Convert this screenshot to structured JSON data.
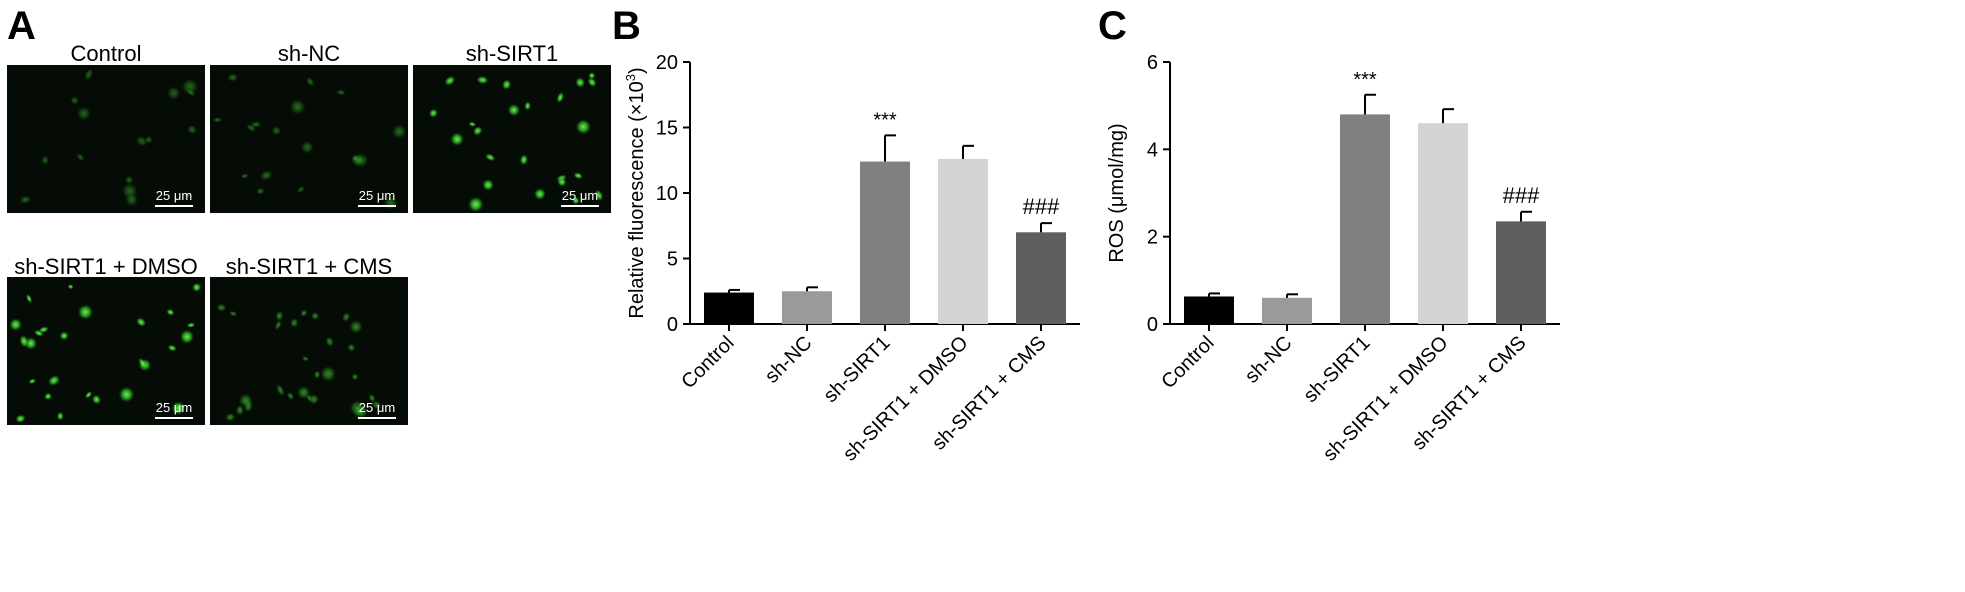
{
  "panels": {
    "a": "A",
    "b": "B",
    "c": "C"
  },
  "micrographs": [
    {
      "title": "Control",
      "scale": "25 μm"
    },
    {
      "title": "sh-NC",
      "scale": "25 μm"
    },
    {
      "title": "sh-SIRT1",
      "scale": "25 μm"
    },
    {
      "title": "sh-SIRT1 + DMSO",
      "scale": "25 μm"
    },
    {
      "title": "sh-SIRT1 + CMS",
      "scale": "25 μm"
    }
  ],
  "chart_data": [
    {
      "type": "bar",
      "title": "",
      "categories": [
        "Control",
        "sh-NC",
        "sh-SIRT1",
        "sh-SIRT1 + DMSO",
        "sh-SIRT1 + CMS"
      ],
      "values": [
        2.4,
        2.5,
        12.4,
        12.6,
        7.0
      ],
      "errors": [
        0.2,
        0.3,
        2.0,
        1.0,
        0.7
      ],
      "annotations": [
        "",
        "",
        "***",
        "",
        "###"
      ],
      "colors": [
        "#000000",
        "#9a9a9a",
        "#808080",
        "#d3d3d3",
        "#5e5e5e"
      ],
      "xlabel": "",
      "ylabel": "Relative fluorescence (×10",
      "ylabel_sup": "3",
      "ylabel_end": ")",
      "ylim": [
        0,
        20
      ],
      "yticks": [
        0,
        5,
        10,
        15,
        20
      ],
      "ytick_labels": [
        "0",
        "5",
        "10",
        "15",
        "20"
      ]
    },
    {
      "type": "bar",
      "title": "",
      "categories": [
        "Control",
        "sh-NC",
        "sh-SIRT1",
        "sh-SIRT1 + DMSO",
        "sh-SIRT1 + CMS"
      ],
      "values": [
        0.63,
        0.6,
        4.8,
        4.6,
        2.35
      ],
      "errors": [
        0.07,
        0.08,
        0.45,
        0.32,
        0.22
      ],
      "annotations": [
        "",
        "",
        "***",
        "",
        "###"
      ],
      "colors": [
        "#000000",
        "#9a9a9a",
        "#808080",
        "#d3d3d3",
        "#5e5e5e"
      ],
      "xlabel": "",
      "ylabel": "ROS (μmol/mg)",
      "ylim": [
        0,
        6
      ],
      "yticks": [
        0,
        2,
        4,
        6
      ],
      "ytick_labels": [
        "0",
        "2",
        "4",
        "6"
      ]
    }
  ]
}
